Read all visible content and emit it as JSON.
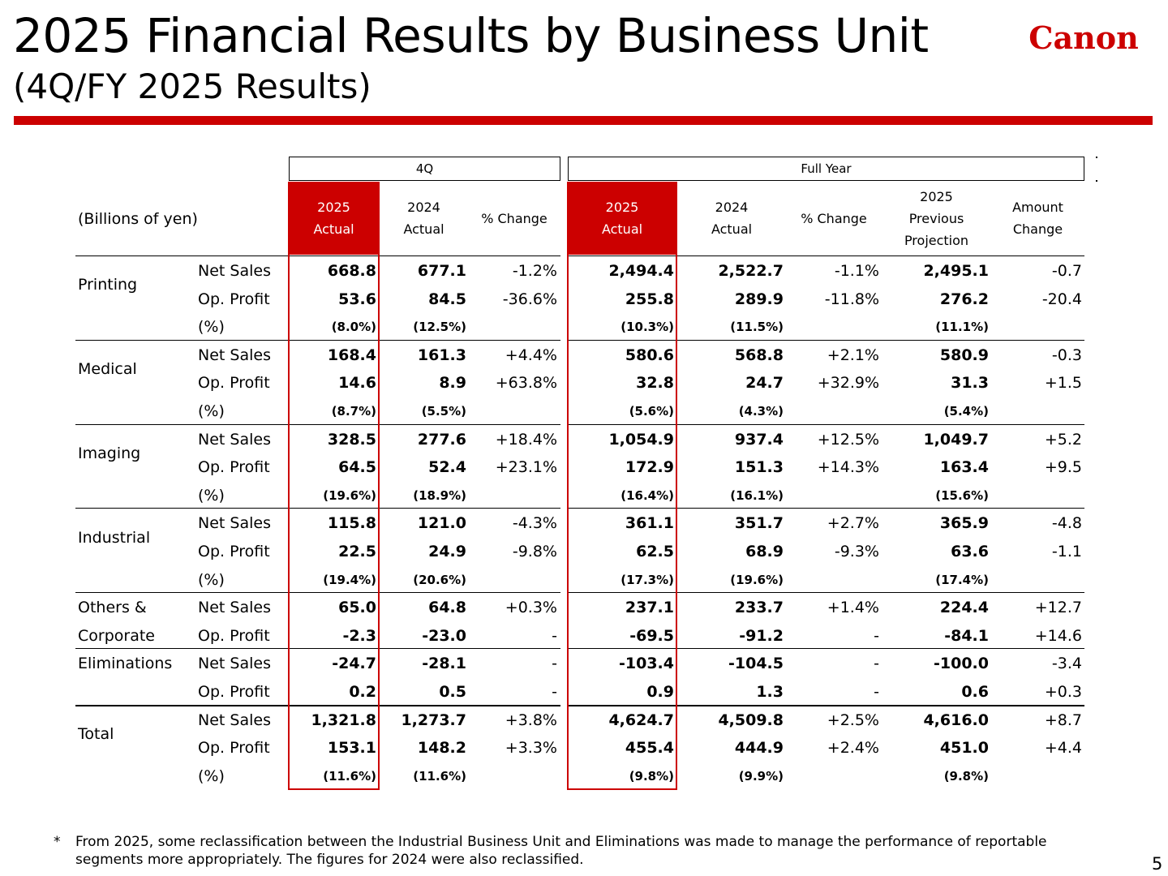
{
  "title": "2025 Financial Results by Business Unit",
  "subtitle": "(4Q/FY 2025 Results)",
  "logo_text": "Canon",
  "brand_color": "#cc0000",
  "table": {
    "units_label": "(Billions of yen)",
    "group_q": "4Q",
    "group_fy": "Full Year",
    "columns": [
      {
        "line1": "2025",
        "line2": "Actual",
        "line3": ""
      },
      {
        "line1": "2024",
        "line2": "Actual",
        "line3": ""
      },
      {
        "line1": "% Change",
        "line2": "",
        "line3": ""
      },
      {
        "line1": "2025",
        "line2": "Actual",
        "line3": ""
      },
      {
        "line1": "2024",
        "line2": "Actual",
        "line3": ""
      },
      {
        "line1": "% Change",
        "line2": "",
        "line3": ""
      },
      {
        "line1": "2025",
        "line2": "Previous",
        "line3": "Projection"
      },
      {
        "line1": "Amount",
        "line2": "Change",
        "line3": ""
      }
    ],
    "segments": [
      {
        "name_lines": [
          "Printing"
        ],
        "rows": [
          {
            "metric": "Net Sales",
            "values": [
              "668.8",
              "677.1",
              "-1.2%",
              "2,494.4",
              "2,522.7",
              "-1.1%",
              "2,495.1",
              "-0.7"
            ]
          },
          {
            "metric": "Op. Profit",
            "values": [
              "53.6",
              "84.5",
              "-36.6%",
              "255.8",
              "289.9",
              "-11.8%",
              "276.2",
              "-20.4"
            ]
          },
          {
            "metric": "(%)",
            "values": [
              "(8.0%)",
              "(12.5%)",
              "",
              "(10.3%)",
              "(11.5%)",
              "",
              "(11.1%)",
              ""
            ]
          }
        ]
      },
      {
        "name_lines": [
          "Medical"
        ],
        "rows": [
          {
            "metric": "Net Sales",
            "values": [
              "168.4",
              "161.3",
              "+4.4%",
              "580.6",
              "568.8",
              "+2.1%",
              "580.9",
              "-0.3"
            ]
          },
          {
            "metric": "Op. Profit",
            "values": [
              "14.6",
              "8.9",
              "+63.8%",
              "32.8",
              "24.7",
              "+32.9%",
              "31.3",
              "+1.5"
            ]
          },
          {
            "metric": "(%)",
            "values": [
              "(8.7%)",
              "(5.5%)",
              "",
              "(5.6%)",
              "(4.3%)",
              "",
              "(5.4%)",
              ""
            ]
          }
        ]
      },
      {
        "name_lines": [
          "Imaging"
        ],
        "rows": [
          {
            "metric": "Net Sales",
            "values": [
              "328.5",
              "277.6",
              "+18.4%",
              "1,054.9",
              "937.4",
              "+12.5%",
              "1,049.7",
              "+5.2"
            ]
          },
          {
            "metric": "Op. Profit",
            "values": [
              "64.5",
              "52.4",
              "+23.1%",
              "172.9",
              "151.3",
              "+14.3%",
              "163.4",
              "+9.5"
            ]
          },
          {
            "metric": "(%)",
            "values": [
              "(19.6%)",
              "(18.9%)",
              "",
              "(16.4%)",
              "(16.1%)",
              "",
              "(15.6%)",
              ""
            ]
          }
        ]
      },
      {
        "name_lines": [
          "Industrial"
        ],
        "rows": [
          {
            "metric": "Net Sales",
            "values": [
              "115.8",
              "121.0",
              "-4.3%",
              "361.1",
              "351.7",
              "+2.7%",
              "365.9",
              "-4.8"
            ]
          },
          {
            "metric": "Op. Profit",
            "values": [
              "22.5",
              "24.9",
              "-9.8%",
              "62.5",
              "68.9",
              "-9.3%",
              "63.6",
              "-1.1"
            ]
          },
          {
            "metric": "(%)",
            "values": [
              "(19.4%)",
              "(20.6%)",
              "",
              "(17.3%)",
              "(19.6%)",
              "",
              "(17.4%)",
              ""
            ]
          }
        ]
      },
      {
        "name_lines": [
          "Others &",
          "Corporate"
        ],
        "rows": [
          {
            "metric": "Net Sales",
            "values": [
              "65.0",
              "64.8",
              "+0.3%",
              "237.1",
              "233.7",
              "+1.4%",
              "224.4",
              "+12.7"
            ]
          },
          {
            "metric": "Op. Profit",
            "values": [
              "-2.3",
              "-23.0",
              "-",
              "-69.5",
              "-91.2",
              "-",
              "-84.1",
              "+14.6"
            ]
          }
        ]
      },
      {
        "name_lines": [
          "Eliminations"
        ],
        "rows": [
          {
            "metric": "Net Sales",
            "values": [
              "-24.7",
              "-28.1",
              "-",
              "-103.4",
              "-104.5",
              "-",
              "-100.0",
              "-3.4"
            ]
          },
          {
            "metric": "Op. Profit",
            "values": [
              "0.2",
              "0.5",
              "-",
              "0.9",
              "1.3",
              "-",
              "0.6",
              "+0.3"
            ]
          }
        ]
      },
      {
        "name_lines": [
          "Total"
        ],
        "rows": [
          {
            "metric": "Net Sales",
            "values": [
              "1,321.8",
              "1,273.7",
              "+3.8%",
              "4,624.7",
              "4,509.8",
              "+2.5%",
              "4,616.0",
              "+8.7"
            ]
          },
          {
            "metric": "Op. Profit",
            "values": [
              "153.1",
              "148.2",
              "+3.3%",
              "455.4",
              "444.9",
              "+2.4%",
              "451.0",
              "+4.4"
            ]
          },
          {
            "metric": "(%)",
            "values": [
              "(11.6%)",
              "(11.6%)",
              "",
              "(9.8%)",
              "(9.9%)",
              "",
              "(9.8%)",
              ""
            ]
          }
        ]
      }
    ]
  },
  "footnote_marker": "*",
  "footnote": "From 2025, some reclassification between the Industrial Business Unit and Eliminations was made to manage the performance of reportable segments more appropriately. The figures for 2024 were also reclassified.",
  "page_number": "5"
}
